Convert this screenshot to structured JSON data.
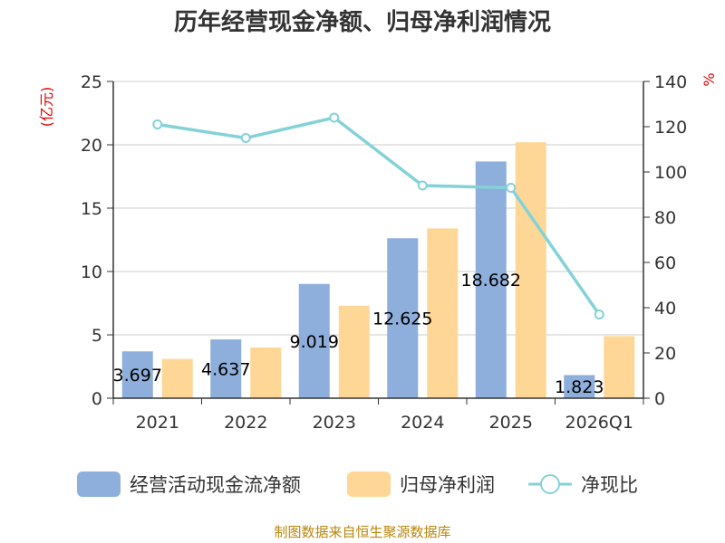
{
  "chart_data": {
    "type": "bar",
    "title": "历年经营现金净额、归母净利润情况",
    "categories": [
      "2021",
      "2022",
      "2023",
      "2024",
      "2025",
      "2026Q1"
    ],
    "series": [
      {
        "name": "经营活动现金流净额",
        "kind": "bar",
        "axis": "left",
        "color": "#8eaedb",
        "values": [
          3.697,
          4.637,
          9.019,
          12.625,
          18.682,
          1.823
        ],
        "labels": [
          "3.697",
          "4.637",
          "9.019",
          "12.625",
          "18.682",
          "1.823"
        ]
      },
      {
        "name": "归母净利润",
        "kind": "bar",
        "axis": "left",
        "color": "#fed796",
        "values": [
          3.1,
          4.0,
          7.3,
          13.4,
          20.2,
          4.9
        ]
      },
      {
        "name": "净现比",
        "kind": "line",
        "axis": "right",
        "color": "#84d2d8",
        "values": [
          121,
          115,
          124,
          94,
          93,
          37
        ]
      }
    ],
    "yleft": {
      "label": "(亿元)",
      "min": 0,
      "max": 25,
      "ticks": [
        0,
        5,
        10,
        15,
        20,
        25
      ]
    },
    "yright": {
      "label": "%",
      "min": 0,
      "max": 140,
      "ticks": [
        0,
        20,
        40,
        60,
        80,
        100,
        120,
        140
      ]
    },
    "grid": true,
    "legend_position": "bottom"
  },
  "source_text": "制图数据来自恒生聚源数据库"
}
